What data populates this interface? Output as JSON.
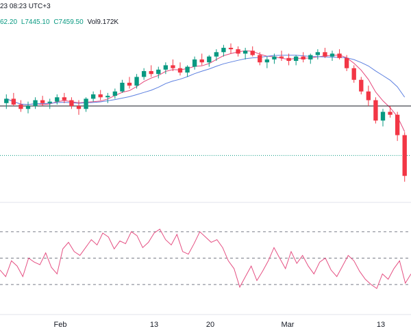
{
  "header": {
    "timestamp": "23 08:23 UTC+3",
    "open_fragment": "62.20",
    "low": "L7445.10",
    "close": "C7459.50",
    "volume": "Vol9.172K"
  },
  "colors": {
    "up": "#089981",
    "down": "#f23645",
    "ma_fast": "#e5467a",
    "ma_slow": "#5b7fe0",
    "rsi": "#e54f82",
    "support_line": "#131722",
    "price_line": "#089981"
  },
  "chart_data": [
    {
      "type": "candlestick",
      "title": "",
      "x_ticks": [
        "Feb",
        "13",
        "20",
        "Mar",
        "13"
      ],
      "support_level": "horizontal line",
      "series": [
        {
          "name": "",
          "kind": "ohlc",
          "values": [
            [
              7710,
              7740,
              7690,
              7725
            ],
            [
              7725,
              7745,
              7700,
              7705
            ],
            [
              7705,
              7720,
              7680,
              7690
            ],
            [
              7690,
              7715,
              7675,
              7700
            ],
            [
              7700,
              7730,
              7690,
              7720
            ],
            [
              7720,
              7735,
              7700,
              7710
            ],
            [
              7710,
              7725,
              7690,
              7715
            ],
            [
              7715,
              7740,
              7705,
              7730
            ],
            [
              7730,
              7745,
              7710,
              7720
            ],
            [
              7720,
              7730,
              7690,
              7700
            ],
            [
              7700,
              7720,
              7670,
              7690
            ],
            [
              7690,
              7730,
              7680,
              7725
            ],
            [
              7725,
              7750,
              7715,
              7740
            ],
            [
              7740,
              7755,
              7720,
              7730
            ],
            [
              7730,
              7745,
              7710,
              7735
            ],
            [
              7735,
              7760,
              7725,
              7750
            ],
            [
              7750,
              7790,
              7745,
              7780
            ],
            [
              7780,
              7800,
              7760,
              7770
            ],
            [
              7770,
              7810,
              7760,
              7800
            ],
            [
              7800,
              7830,
              7790,
              7820
            ],
            [
              7820,
              7840,
              7800,
              7810
            ],
            [
              7810,
              7835,
              7795,
              7825
            ],
            [
              7825,
              7850,
              7810,
              7840
            ],
            [
              7840,
              7860,
              7820,
              7830
            ],
            [
              7830,
              7850,
              7805,
              7815
            ],
            [
              7815,
              7840,
              7800,
              7835
            ],
            [
              7835,
              7870,
              7825,
              7860
            ],
            [
              7860,
              7880,
              7840,
              7850
            ],
            [
              7850,
              7875,
              7835,
              7870
            ],
            [
              7870,
              7895,
              7855,
              7885
            ],
            [
              7885,
              7910,
              7870,
              7900
            ],
            [
              7900,
              7915,
              7880,
              7895
            ],
            [
              7895,
              7905,
              7870,
              7880
            ],
            [
              7880,
              7900,
              7860,
              7890
            ],
            [
              7890,
              7905,
              7870,
              7875
            ],
            [
              7875,
              7885,
              7840,
              7850
            ],
            [
              7850,
              7870,
              7830,
              7860
            ],
            [
              7860,
              7880,
              7845,
              7870
            ],
            [
              7870,
              7890,
              7855,
              7865
            ],
            [
              7865,
              7880,
              7840,
              7855
            ],
            [
              7855,
              7875,
              7840,
              7870
            ],
            [
              7870,
              7885,
              7850,
              7860
            ],
            [
              7860,
              7880,
              7845,
              7875
            ],
            [
              7875,
              7895,
              7860,
              7885
            ],
            [
              7885,
              7900,
              7865,
              7870
            ],
            [
              7870,
              7890,
              7855,
              7880
            ],
            [
              7880,
              7895,
              7860,
              7865
            ],
            [
              7865,
              7875,
              7820,
              7830
            ],
            [
              7830,
              7840,
              7780,
              7790
            ],
            [
              7790,
              7800,
              7740,
              7750
            ],
            [
              7750,
              7770,
              7700,
              7720
            ],
            [
              7720,
              7730,
              7640,
              7650
            ],
            [
              7650,
              7690,
              7630,
              7680
            ],
            [
              7680,
              7700,
              7660,
              7670
            ],
            [
              7670,
              7680,
              7580,
              7600
            ],
            [
              7600,
              7610,
              7440,
              7460
            ]
          ]
        },
        {
          "name": "",
          "kind": "ma_fast"
        },
        {
          "name": "",
          "kind": "ma_slow"
        }
      ]
    },
    {
      "type": "line",
      "title": "",
      "bands": [
        70,
        50,
        30
      ],
      "ylim": [
        15,
        85
      ],
      "series": [
        {
          "name": "",
          "values": [
            41,
            36,
            48,
            44,
            36,
            50,
            47,
            45,
            54,
            43,
            38,
            57,
            62,
            55,
            52,
            58,
            64,
            60,
            69,
            66,
            57,
            63,
            61,
            70,
            67,
            58,
            62,
            69,
            72,
            64,
            60,
            68,
            55,
            53,
            61,
            70,
            66,
            62,
            64,
            58,
            48,
            42,
            28,
            36,
            44,
            33,
            40,
            48,
            58,
            50,
            42,
            55,
            46,
            52,
            44,
            38,
            47,
            50,
            41,
            36,
            44,
            52,
            48,
            40,
            34,
            30,
            27,
            38,
            34,
            42,
            48,
            31,
            38
          ]
        }
      ]
    }
  ]
}
